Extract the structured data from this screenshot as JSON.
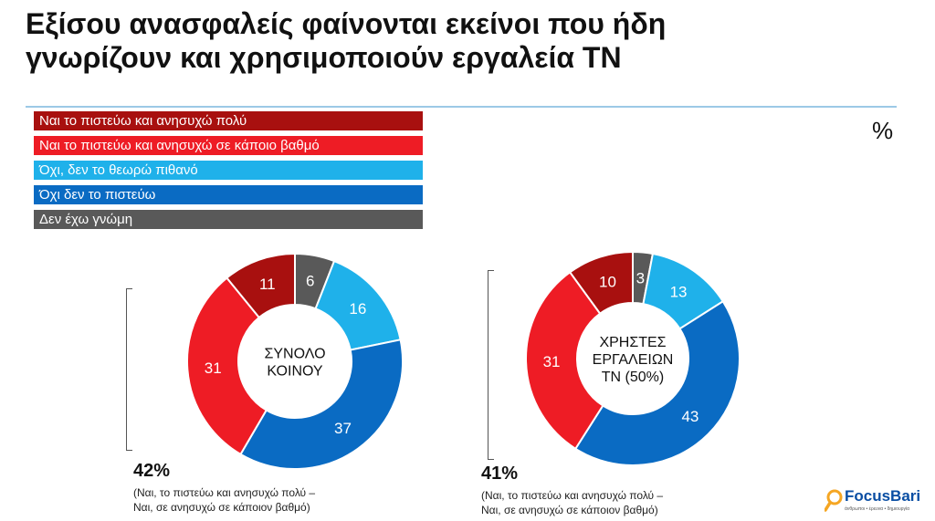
{
  "title_line1": "Εξίσου ανασφαλείς φαίνονται εκείνοι που ήδη",
  "title_line2": "γνωρίζουν και χρησιμοποιούν εργαλεία ΤΝ",
  "unit": "%",
  "colors": {
    "dark_red": "#a8100f",
    "red": "#ee1c25",
    "light_blue": "#1fb1ea",
    "blue": "#0a6bc3",
    "gray": "#595959"
  },
  "chart_data": [
    {
      "type": "pie",
      "center_label": [
        "ΣΥΝΟΛΟ",
        "ΚΟΙΝΟΥ"
      ],
      "categories": [
        "Ναι το πιστεύω και ανησυχώ πολύ",
        "Ναι το πιστεύω και ανησυχώ σε κάποιο βαθμό",
        "Όχι, δεν το θεωρώ πιθανό",
        "Όχι δεν το πιστεύω",
        "Δεν έχω γνώμη"
      ],
      "values": [
        11,
        31,
        16,
        37,
        6
      ],
      "summary_value": "42%",
      "summary_note": [
        "(Ναι, το πιστεύω και ανησυχώ πολύ –",
        "Ναι, σε ανησυχώ σε κάποιον βαθμό)"
      ],
      "legend": "top-left"
    },
    {
      "type": "pie",
      "center_label": [
        "ΧΡΗΣΤΕΣ",
        "ΕΡΓΑΛΕΙΩΝ",
        "ΤΝ (50%)"
      ],
      "categories": [
        "Ναι το πιστεύω και ανησυχώ πολύ",
        "Ναι το πιστεύω και ανησυχώ σε κάποιο βαθμό",
        "Όχι, δεν το θεωρώ πιθανό",
        "Όχι δεν το πιστεύω",
        "Δεν έχω γνώμη"
      ],
      "values": [
        10,
        31,
        13,
        43,
        3
      ],
      "summary_value": "41%",
      "summary_note": [
        "(Ναι, το πιστεύω και ανησυχώ πολύ –",
        "Ναι, σε ανησυχώ σε κάποιον βαθμό)"
      ],
      "legend": "top-left"
    }
  ],
  "legend_items": [
    {
      "label": "Ναι το πιστεύω και ανησυχώ πολύ",
      "color": "#a8100f"
    },
    {
      "label": "Ναι το πιστεύω και ανησυχώ σε κάποιο βαθμό",
      "color": "#ee1c25"
    },
    {
      "label": "Όχι, δεν το θεωρώ πιθανό",
      "color": "#1fb1ea"
    },
    {
      "label": "Όχι δεν το πιστεύω",
      "color": "#0a6bc3"
    },
    {
      "label": "Δεν έχω γνώμη",
      "color": "#595959"
    }
  ],
  "logo": {
    "name": "FocusBari",
    "tagline": "άνθρωποι • έρευνα • δημιουργία",
    "icon": "magnifier-icon"
  }
}
